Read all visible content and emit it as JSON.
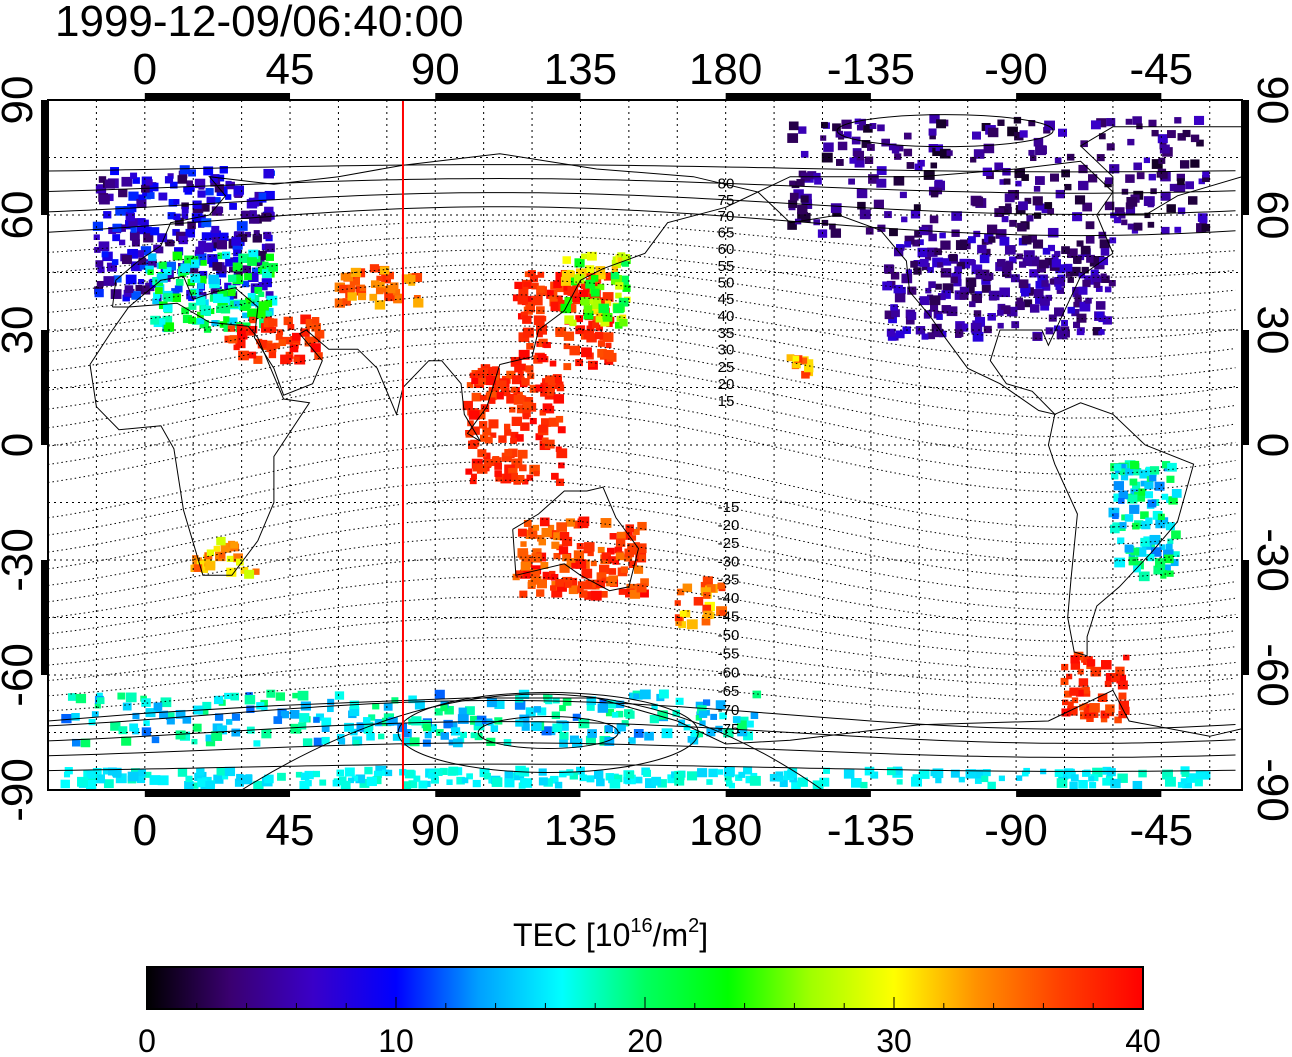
{
  "timestamp": "1999-12-09/06:40:00",
  "map": {
    "lon_range": [
      -30,
      340
    ],
    "lat_range": [
      -90,
      90
    ],
    "lon_ticks": [
      0,
      45,
      90,
      135,
      180,
      225,
      270,
      315
    ],
    "lon_tick_labels": [
      "0",
      "45",
      "90",
      "135",
      "180",
      "-135",
      "-90",
      "-45"
    ],
    "lat_ticks": [
      90,
      60,
      30,
      0,
      -30,
      -60,
      -90
    ],
    "lat_tick_labels": [
      "90",
      "60",
      "30",
      "0",
      "-30",
      "-60",
      "-90"
    ],
    "grid": "dotted, 15 degree spacing",
    "marker_longitude": 80,
    "marker_color": "#ff0000",
    "contour_labels": [
      "80",
      "75",
      "70",
      "65",
      "60",
      "55",
      "50",
      "45",
      "40",
      "35",
      "30",
      "25",
      "20",
      "15",
      "-15",
      "-20",
      "-25",
      "-30",
      "-35",
      "-40",
      "-45",
      "-50",
      "-55",
      "-60",
      "-65",
      "-70",
      "-75"
    ]
  },
  "colorbar": {
    "title": "TEC  [10",
    "title_sup1": "16",
    "title_mid": "/m",
    "title_sup2": "2",
    "title_end": "]",
    "min": 0,
    "max": 40,
    "tick_labels": [
      "0",
      "10",
      "20",
      "30",
      "40"
    ],
    "colormap_stops": [
      "#000000",
      "#3a0070",
      "#3a00c8",
      "#0000ff",
      "#00a0ff",
      "#00ffff",
      "#00ff60",
      "#00ff00",
      "#a0ff00",
      "#ffff00",
      "#ff9000",
      "#ff4000",
      "#ff0000"
    ]
  },
  "tec_regions": [
    {
      "name": "europe",
      "lon": [
        -15,
        40
      ],
      "lat": [
        38,
        72
      ],
      "tec": [
        2,
        12
      ]
    },
    {
      "name": "mediterranean",
      "lon": [
        0,
        40
      ],
      "lat": [
        30,
        50
      ],
      "tec": [
        14,
        24
      ]
    },
    {
      "name": "north-africa-middle-east",
      "lon": [
        25,
        55
      ],
      "lat": [
        22,
        33
      ],
      "tec": [
        36,
        40
      ]
    },
    {
      "name": "central-asia",
      "lon": [
        60,
        85
      ],
      "lat": [
        36,
        46
      ],
      "tec": [
        32,
        38
      ]
    },
    {
      "name": "east-asia",
      "lon": [
        115,
        145
      ],
      "lat": [
        20,
        45
      ],
      "tec": [
        36,
        40
      ]
    },
    {
      "name": "japan",
      "lon": [
        130,
        150
      ],
      "lat": [
        30,
        50
      ],
      "tec": [
        20,
        32
      ]
    },
    {
      "name": "southeast-asia",
      "lon": [
        100,
        130
      ],
      "lat": [
        -10,
        20
      ],
      "tec": [
        36,
        40
      ]
    },
    {
      "name": "australia",
      "lon": [
        115,
        155
      ],
      "lat": [
        -40,
        -20
      ],
      "tec": [
        34,
        40
      ]
    },
    {
      "name": "new-zealand",
      "lon": [
        165,
        180
      ],
      "lat": [
        -47,
        -35
      ],
      "tec": [
        30,
        38
      ]
    },
    {
      "name": "north-america",
      "lon": [
        230,
        300
      ],
      "lat": [
        28,
        55
      ],
      "tec": [
        2,
        8
      ]
    },
    {
      "name": "canada-north",
      "lon": [
        200,
        330
      ],
      "lat": [
        55,
        85
      ],
      "tec": [
        1,
        7
      ]
    },
    {
      "name": "hawaii",
      "lon": [
        200,
        208
      ],
      "lat": [
        18,
        23
      ],
      "tec": [
        30,
        38
      ]
    },
    {
      "name": "south-america-east",
      "lon": [
        300,
        320
      ],
      "lat": [
        -35,
        -5
      ],
      "tec": [
        12,
        22
      ]
    },
    {
      "name": "south-america-south",
      "lon": [
        285,
        305
      ],
      "lat": [
        -72,
        -55
      ],
      "tec": [
        36,
        40
      ]
    },
    {
      "name": "south-africa",
      "lon": [
        15,
        35
      ],
      "lat": [
        -34,
        -25
      ],
      "tec": [
        28,
        36
      ]
    },
    {
      "name": "antarctica-coast",
      "lon": [
        -25,
        190
      ],
      "lat": [
        -78,
        -65
      ],
      "tec": [
        12,
        20
      ]
    },
    {
      "name": "antarctica-interior",
      "lon": [
        -25,
        330
      ],
      "lat": [
        -89,
        -85
      ],
      "tec": [
        15,
        18
      ]
    }
  ]
}
